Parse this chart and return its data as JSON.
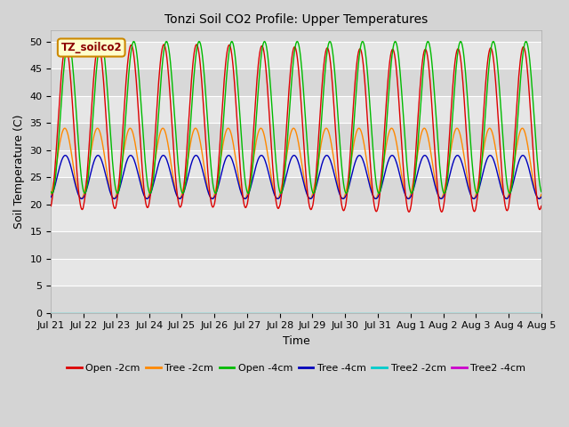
{
  "title": "Tonzi Soil CO2 Profile: Upper Temperatures",
  "xlabel": "Time",
  "ylabel": "Soil Temperature (C)",
  "ylim": [
    0,
    52
  ],
  "yticks": [
    0,
    5,
    10,
    15,
    20,
    25,
    30,
    35,
    40,
    45,
    50
  ],
  "x_labels": [
    "Jul 21",
    "Jul 22",
    "Jul 23",
    "Jul 24",
    "Jul 25",
    "Jul 26",
    "Jul 27",
    "Jul 28",
    "Jul 29",
    "Jul 30",
    "Jul 31",
    "Aug 1",
    "Aug 2",
    "Aug 3",
    "Aug 4",
    "Aug 5"
  ],
  "series_colors": {
    "Open -2cm": "#dd0000",
    "Tree -2cm": "#ff8800",
    "Open -4cm": "#00bb00",
    "Tree -4cm": "#0000bb",
    "Tree2 -2cm": "#00cccc",
    "Tree2 -4cm": "#cc00cc"
  },
  "annotation_text": "TZ_soilco2",
  "bg_dark": "#d8d8d8",
  "bg_light": "#ebebeb",
  "bg_lighter": "#f0f0f0",
  "grid_color": "#c8c8c8",
  "band_colors": [
    "#d8d8d8",
    "#e8e8e8"
  ],
  "n_days": 15,
  "n_pts_per_day": 48,
  "title_fontsize": 10,
  "axis_fontsize": 9,
  "tick_fontsize": 8,
  "legend_fontsize": 8
}
